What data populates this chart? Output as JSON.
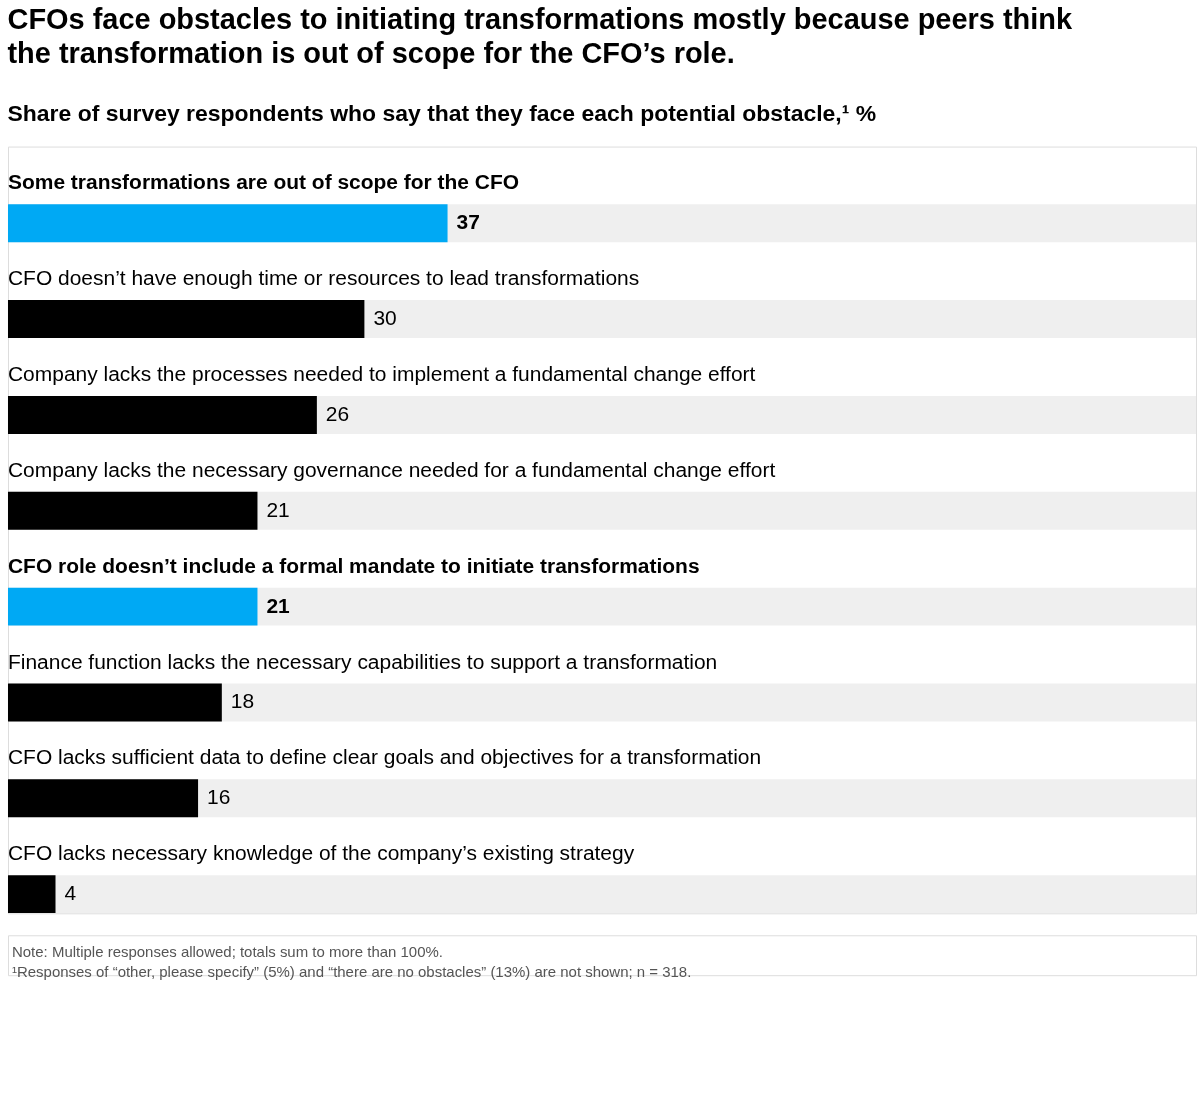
{
  "chart_data": {
    "type": "bar",
    "orientation": "horizontal",
    "title": "CFOs face obstacles to initiating transformations mostly because peers think the transformation is out of scope for the CFO’s role.",
    "subtitle": "Share of survey respondents who say that they face each potential obstacle,¹ %",
    "categories": [
      "Some transformations are out of scope for the CFO",
      "CFO doesn’t have enough time or resources to lead transformations",
      "Company lacks the processes needed to implement a fundamental change effort",
      "Company lacks the necessary governance needed for a fundamental change effort",
      "CFO role doesn’t include a formal mandate to initiate transformations",
      "Finance function lacks the necessary capabilities to support a transformation",
      "CFO lacks sufficient data to define clear goals and objectives for a transformation",
      "CFO lacks necessary knowledge of the company’s existing strategy"
    ],
    "values": [
      37,
      30,
      26,
      21,
      21,
      18,
      16,
      4
    ],
    "colors": [
      "#00a9f4",
      "#000000",
      "#000000",
      "#000000",
      "#00a9f4",
      "#000000",
      "#000000",
      "#000000"
    ],
    "xlim": [
      0,
      100
    ],
    "data_labels": true,
    "annotations": [
      "Note: Multiple responses allowed; totals sum to more than 100%.",
      "¹Responses of “other, please specify” (5%) and “there are no obstacles” (13%) are not shown; n = 318."
    ]
  }
}
